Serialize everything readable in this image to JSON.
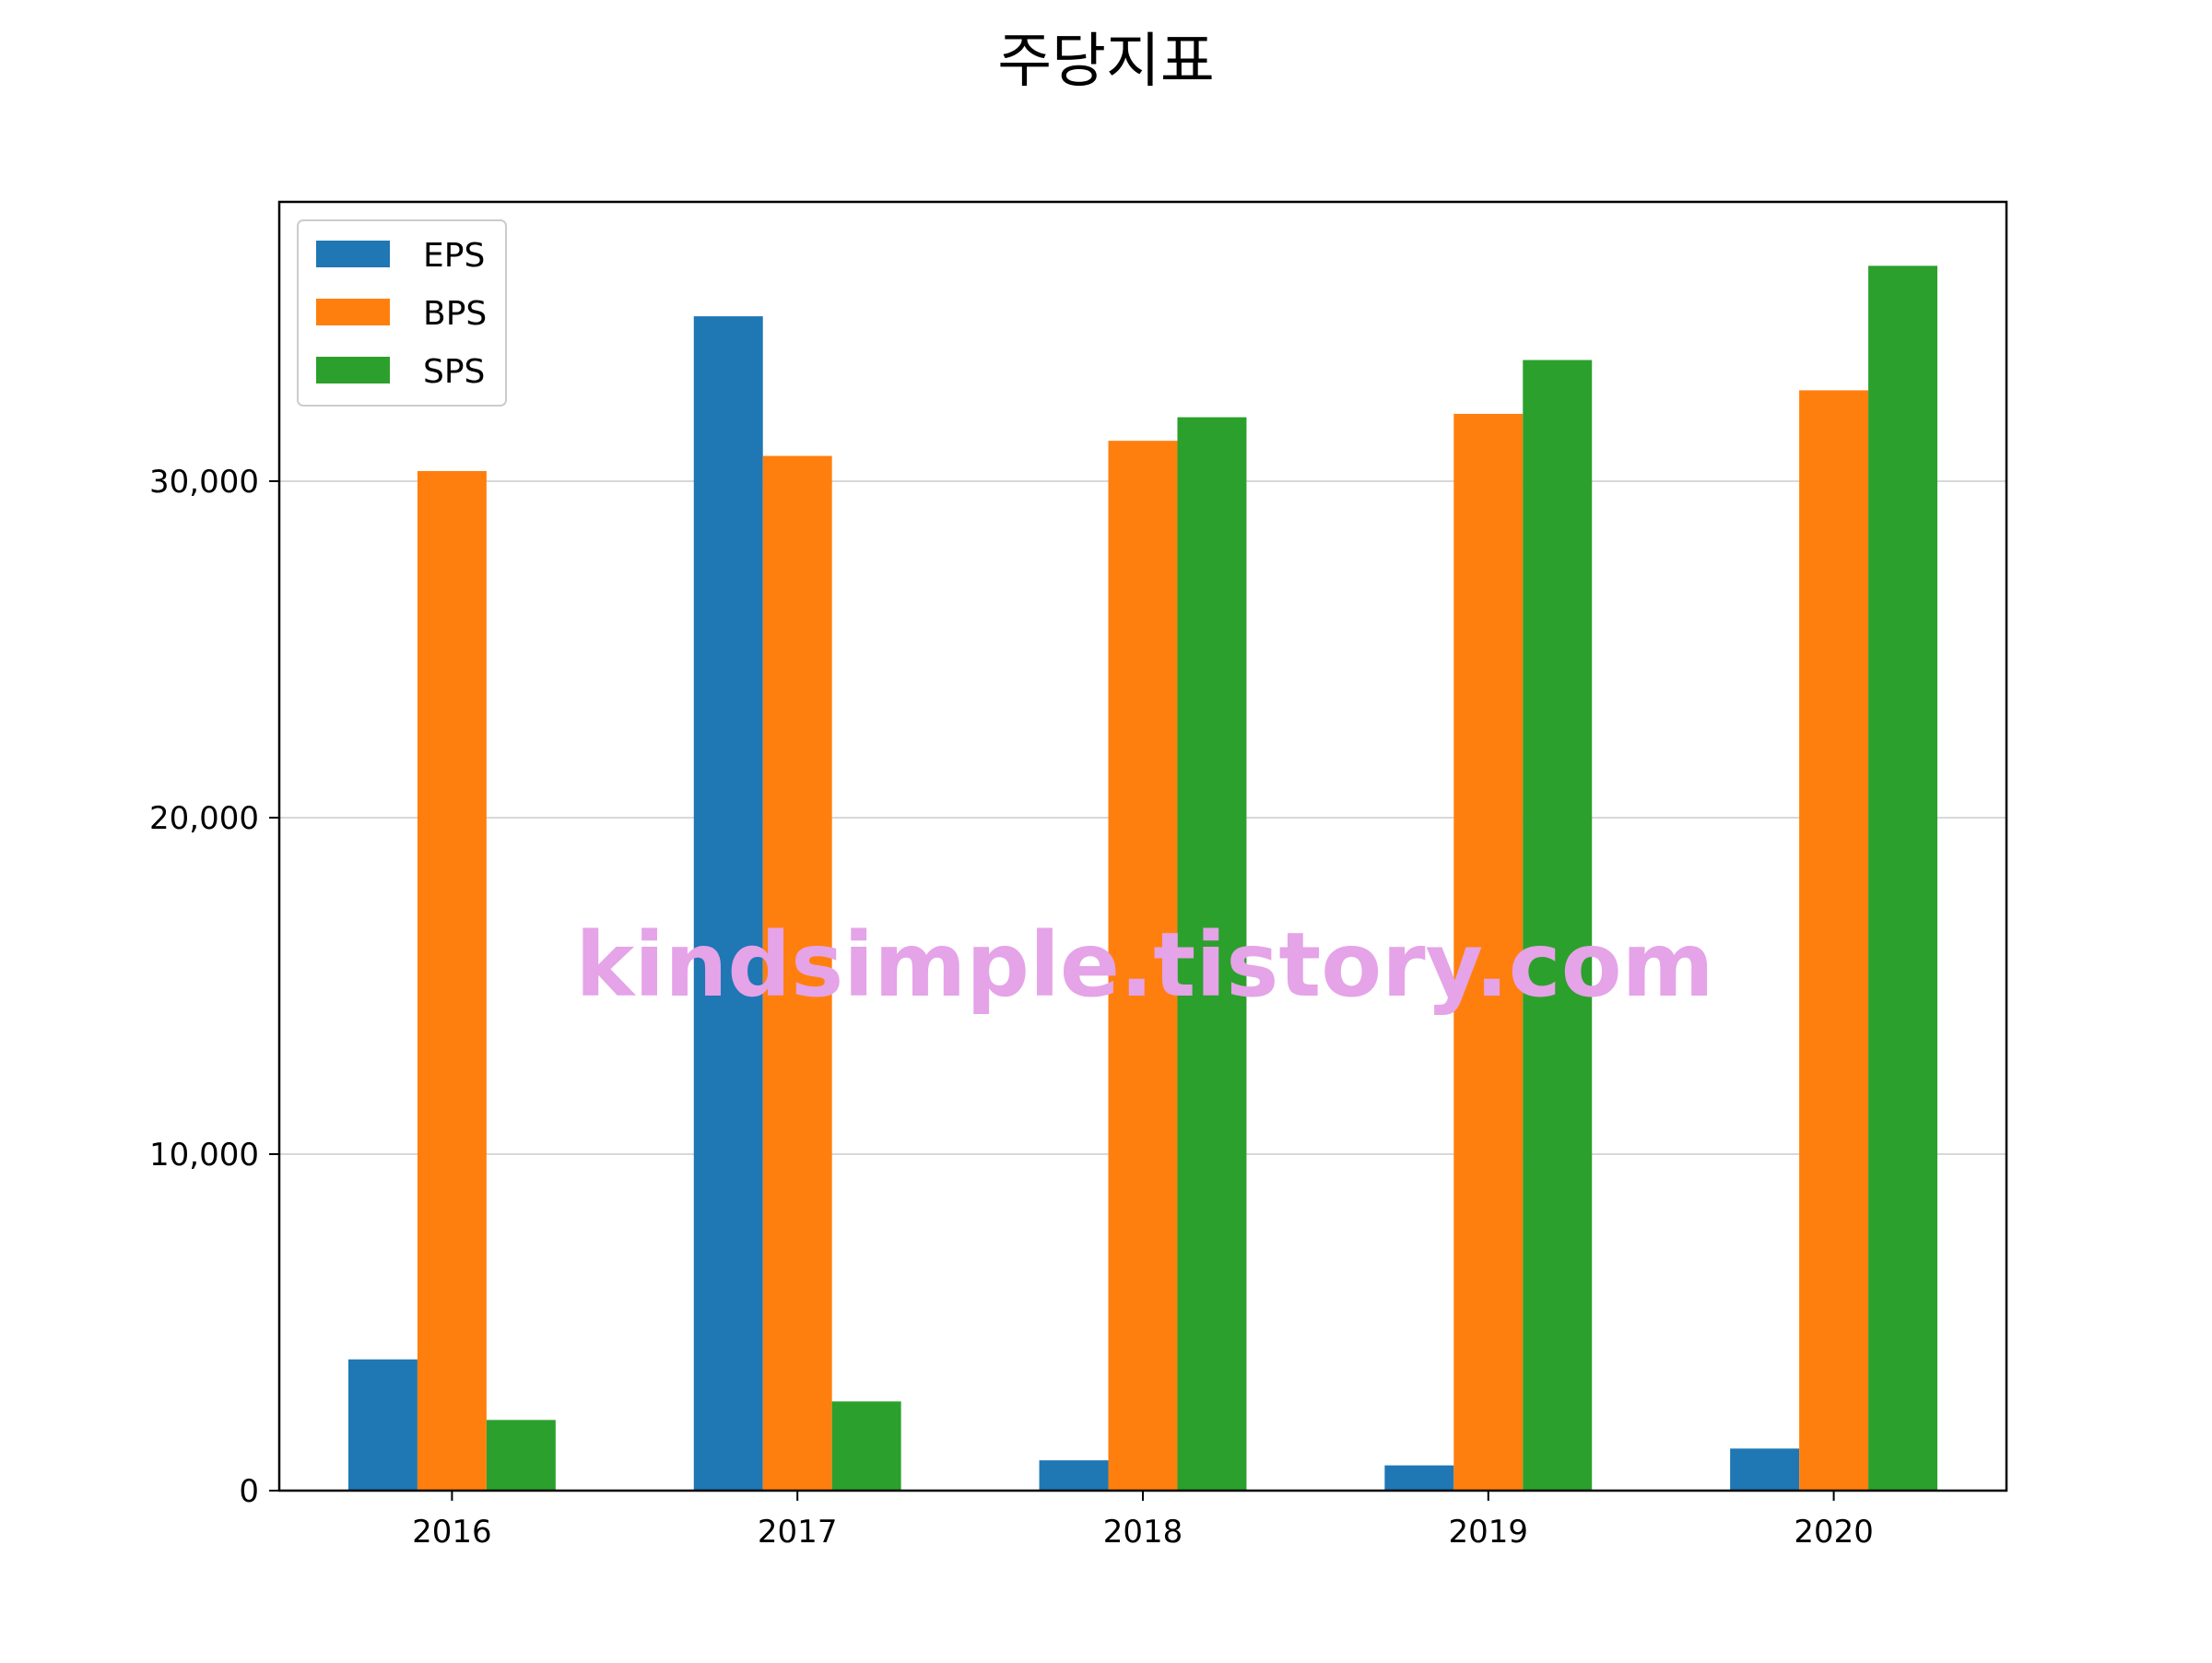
{
  "chart_data": {
    "type": "bar",
    "title": "주당지표",
    "xlabel": "",
    "ylabel": "",
    "categories": [
      "2016",
      "2017",
      "2018",
      "2019",
      "2020"
    ],
    "series": [
      {
        "name": "EPS",
        "color": "#1f77b4",
        "values": [
          3900,
          34900,
          900,
          750,
          1250
        ]
      },
      {
        "name": "BPS",
        "color": "#ff7f0e",
        "values": [
          30300,
          30750,
          31200,
          32000,
          32700
        ]
      },
      {
        "name": "SPS",
        "color": "#2ca02c",
        "values": [
          2100,
          2650,
          31900,
          33600,
          36400
        ]
      }
    ],
    "ylim": [
      0,
      38300
    ],
    "yticks": [
      0,
      10000,
      20000,
      30000
    ],
    "ytick_labels": [
      "0",
      "10,000",
      "20,000",
      "30,000"
    ],
    "grid": "y",
    "legend_position": "top-left",
    "watermark": "kindsimple.tistory.com",
    "watermark_color": "#e5a3e8"
  }
}
